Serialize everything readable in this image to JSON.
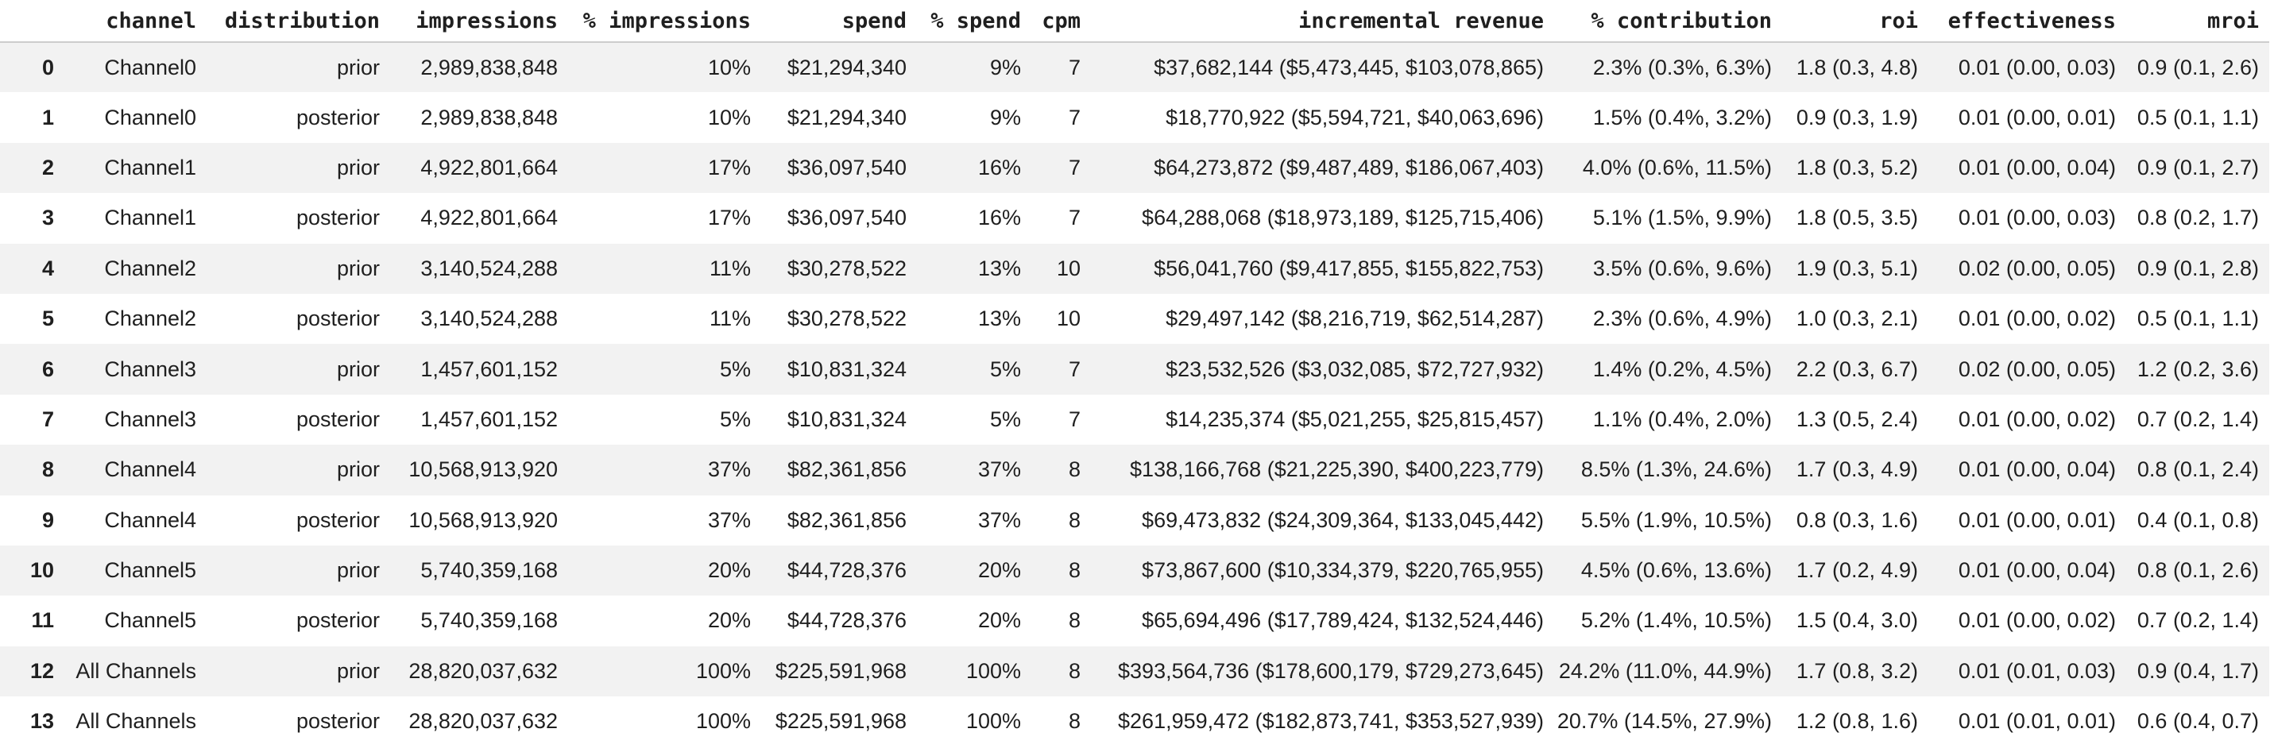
{
  "style": {
    "stripe_color": "#f2f2f2",
    "header_border_color": "#cdcdcd",
    "text_color": "#1f1f1f",
    "background_color": "#ffffff"
  },
  "table": {
    "columns": [
      "",
      "channel",
      "distribution",
      "impressions",
      "% impressions",
      "spend",
      "% spend",
      "cpm",
      "incremental revenue",
      "% contribution",
      "roi",
      "effectiveness",
      "mroi"
    ],
    "col_keys": [
      "index",
      "channel",
      "distribution",
      "impressions",
      "pct-impressions",
      "spend",
      "pct-spend",
      "cpm",
      "incremental-revenue",
      "pct-contribution",
      "roi",
      "effectiveness",
      "mroi"
    ],
    "rows": [
      [
        "0",
        "Channel0",
        "prior",
        "2,989,838,848",
        "10%",
        "$21,294,340",
        "9%",
        "7",
        "$37,682,144 ($5,473,445, $103,078,865)",
        "2.3% (0.3%, 6.3%)",
        "1.8 (0.3, 4.8)",
        "0.01 (0.00, 0.03)",
        "0.9 (0.1, 2.6)"
      ],
      [
        "1",
        "Channel0",
        "posterior",
        "2,989,838,848",
        "10%",
        "$21,294,340",
        "9%",
        "7",
        "$18,770,922 ($5,594,721, $40,063,696)",
        "1.5% (0.4%, 3.2%)",
        "0.9 (0.3, 1.9)",
        "0.01 (0.00, 0.01)",
        "0.5 (0.1, 1.1)"
      ],
      [
        "2",
        "Channel1",
        "prior",
        "4,922,801,664",
        "17%",
        "$36,097,540",
        "16%",
        "7",
        "$64,273,872 ($9,487,489, $186,067,403)",
        "4.0% (0.6%, 11.5%)",
        "1.8 (0.3, 5.2)",
        "0.01 (0.00, 0.04)",
        "0.9 (0.1, 2.7)"
      ],
      [
        "3",
        "Channel1",
        "posterior",
        "4,922,801,664",
        "17%",
        "$36,097,540",
        "16%",
        "7",
        "$64,288,068 ($18,973,189, $125,715,406)",
        "5.1% (1.5%, 9.9%)",
        "1.8 (0.5, 3.5)",
        "0.01 (0.00, 0.03)",
        "0.8 (0.2, 1.7)"
      ],
      [
        "4",
        "Channel2",
        "prior",
        "3,140,524,288",
        "11%",
        "$30,278,522",
        "13%",
        "10",
        "$56,041,760 ($9,417,855, $155,822,753)",
        "3.5% (0.6%, 9.6%)",
        "1.9 (0.3, 5.1)",
        "0.02 (0.00, 0.05)",
        "0.9 (0.1, 2.8)"
      ],
      [
        "5",
        "Channel2",
        "posterior",
        "3,140,524,288",
        "11%",
        "$30,278,522",
        "13%",
        "10",
        "$29,497,142 ($8,216,719, $62,514,287)",
        "2.3% (0.6%, 4.9%)",
        "1.0 (0.3, 2.1)",
        "0.01 (0.00, 0.02)",
        "0.5 (0.1, 1.1)"
      ],
      [
        "6",
        "Channel3",
        "prior",
        "1,457,601,152",
        "5%",
        "$10,831,324",
        "5%",
        "7",
        "$23,532,526 ($3,032,085, $72,727,932)",
        "1.4% (0.2%, 4.5%)",
        "2.2 (0.3, 6.7)",
        "0.02 (0.00, 0.05)",
        "1.2 (0.2, 3.6)"
      ],
      [
        "7",
        "Channel3",
        "posterior",
        "1,457,601,152",
        "5%",
        "$10,831,324",
        "5%",
        "7",
        "$14,235,374 ($5,021,255, $25,815,457)",
        "1.1% (0.4%, 2.0%)",
        "1.3 (0.5, 2.4)",
        "0.01 (0.00, 0.02)",
        "0.7 (0.2, 1.4)"
      ],
      [
        "8",
        "Channel4",
        "prior",
        "10,568,913,920",
        "37%",
        "$82,361,856",
        "37%",
        "8",
        "$138,166,768 ($21,225,390, $400,223,779)",
        "8.5% (1.3%, 24.6%)",
        "1.7 (0.3, 4.9)",
        "0.01 (0.00, 0.04)",
        "0.8 (0.1, 2.4)"
      ],
      [
        "9",
        "Channel4",
        "posterior",
        "10,568,913,920",
        "37%",
        "$82,361,856",
        "37%",
        "8",
        "$69,473,832 ($24,309,364, $133,045,442)",
        "5.5% (1.9%, 10.5%)",
        "0.8 (0.3, 1.6)",
        "0.01 (0.00, 0.01)",
        "0.4 (0.1, 0.8)"
      ],
      [
        "10",
        "Channel5",
        "prior",
        "5,740,359,168",
        "20%",
        "$44,728,376",
        "20%",
        "8",
        "$73,867,600 ($10,334,379, $220,765,955)",
        "4.5% (0.6%, 13.6%)",
        "1.7 (0.2, 4.9)",
        "0.01 (0.00, 0.04)",
        "0.8 (0.1, 2.6)"
      ],
      [
        "11",
        "Channel5",
        "posterior",
        "5,740,359,168",
        "20%",
        "$44,728,376",
        "20%",
        "8",
        "$65,694,496 ($17,789,424, $132,524,446)",
        "5.2% (1.4%, 10.5%)",
        "1.5 (0.4, 3.0)",
        "0.01 (0.00, 0.02)",
        "0.7 (0.2, 1.4)"
      ],
      [
        "12",
        "All Channels",
        "prior",
        "28,820,037,632",
        "100%",
        "$225,591,968",
        "100%",
        "8",
        "$393,564,736 ($178,600,179, $729,273,645)",
        "24.2% (11.0%, 44.9%)",
        "1.7 (0.8, 3.2)",
        "0.01 (0.01, 0.03)",
        "0.9 (0.4, 1.7)"
      ],
      [
        "13",
        "All Channels",
        "posterior",
        "28,820,037,632",
        "100%",
        "$225,591,968",
        "100%",
        "8",
        "$261,959,472 ($182,873,741, $353,527,939)",
        "20.7% (14.5%, 27.9%)",
        "1.2 (0.8, 1.6)",
        "0.01 (0.01, 0.01)",
        "0.6 (0.4, 0.7)"
      ]
    ]
  }
}
